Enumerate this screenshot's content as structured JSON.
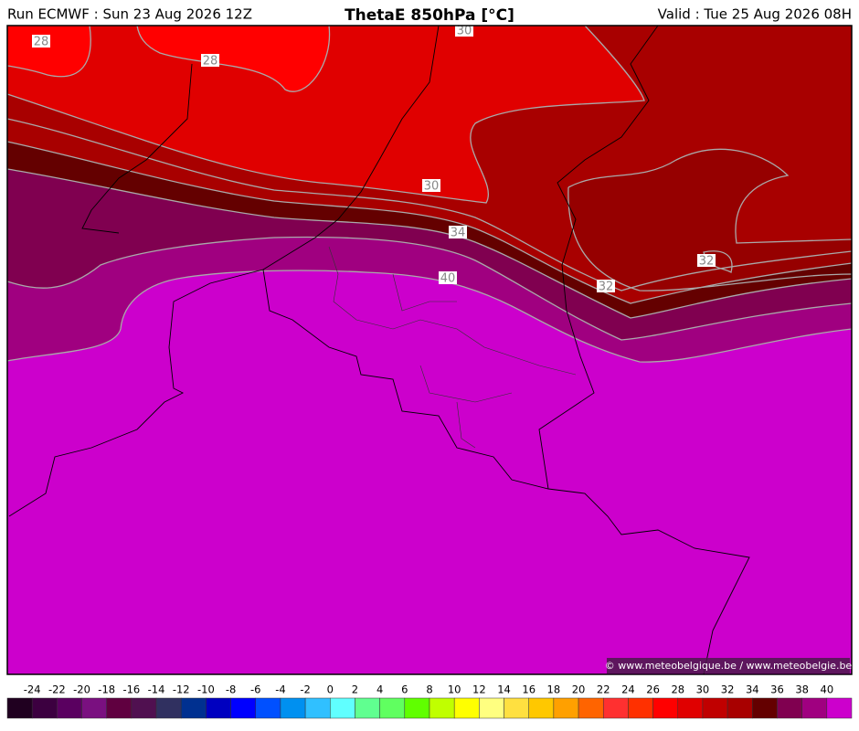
{
  "header": {
    "run": "Run ECMWF : Sun 23 Aug 2026 12Z",
    "title": "ThetaE 850hPa [°C]",
    "valid": "Valid : Tue 25 Aug 2026 08H"
  },
  "contour_labels": [
    28,
    28,
    30,
    30,
    34,
    40,
    32,
    32
  ],
  "copyright": "© www.meteobelgique.be / www.meteobelgie.be",
  "legend": {
    "labels": [
      -24,
      -22,
      -20,
      -18,
      -16,
      -14,
      -12,
      -10,
      -8,
      -6,
      -4,
      -2,
      0,
      2,
      4,
      6,
      8,
      10,
      12,
      14,
      16,
      18,
      20,
      22,
      24,
      26,
      28,
      30,
      32,
      34,
      36,
      38,
      40
    ],
    "colors": [
      "#200020",
      "#3c0040",
      "#5a0060",
      "#7a1080",
      "#600040",
      "#501050",
      "#303060",
      "#003090",
      "#0000c0",
      "#0000ff",
      "#0050ff",
      "#0090f0",
      "#30c0ff",
      "#60ffff",
      "#60ff90",
      "#60ff60",
      "#60ff00",
      "#c0ff00",
      "#ffff00",
      "#ffff80",
      "#ffe040",
      "#ffc800",
      "#ffa000",
      "#ff6400",
      "#ff3030",
      "#ff3000",
      "#ff0000",
      "#e00000",
      "#c00000",
      "#a80000",
      "#640000",
      "#800050",
      "#a00080",
      "#cc00cc"
    ]
  }
}
